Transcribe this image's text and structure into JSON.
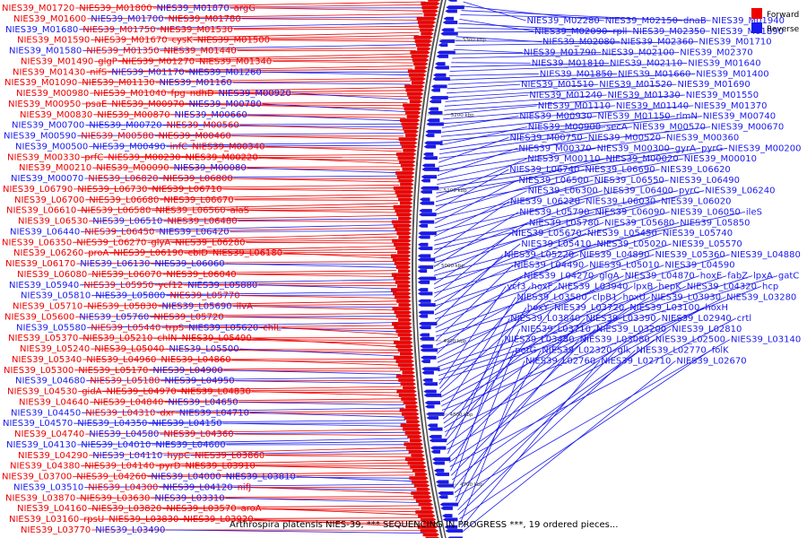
{
  "caption": "Arthrospira platensis NIES-39, *** SEQUENCING IN PROGRESS ***, 19 ordered pieces...",
  "legend": [
    {
      "label": "Forward",
      "color": "#ee0000"
    },
    {
      "label": "Reverse",
      "color": "#1a1aee"
    }
  ],
  "ticks": [
    "5300 kbp",
    "5200 kbp",
    "5100 kbp",
    "5000 kbp",
    "4900 kbp",
    "4800 kbp",
    "4700 kbp"
  ],
  "left_labels": [
    [
      "NIES39_M01720",
      "r"
    ],
    [
      "NIES39_M01800",
      "r"
    ],
    [
      "NIES39_M01870",
      "b"
    ],
    [
      "argG",
      "r"
    ],
    [
      "NIES39_M01600",
      "r"
    ],
    [
      "NIES39_M01700",
      "b"
    ],
    [
      "NIES39_M01780",
      "r"
    ],
    [
      "NIES39_M01680",
      "b"
    ],
    [
      "NIES39_M01750",
      "r"
    ],
    [
      "NIES39_M01530",
      "r"
    ],
    [
      "NIES39_M01590",
      "r"
    ],
    [
      "NIES39_M01670",
      "r"
    ],
    [
      "cysK",
      "r"
    ],
    [
      "NIES39_M01500",
      "r"
    ],
    [
      "NIES39_M01580",
      "b"
    ],
    [
      "NIES39_M01350",
      "r"
    ],
    [
      "NIES39_M01440",
      "r"
    ],
    [
      "NIES39_M01490",
      "r"
    ],
    [
      "glgP",
      "r"
    ],
    [
      "NIES39_M01270",
      "r"
    ],
    [
      "NIES39_M01340",
      "r"
    ],
    [
      "NIES39_M01430",
      "r"
    ],
    [
      "nifS",
      "r"
    ],
    [
      "NIES39_M01170",
      "b"
    ],
    [
      "NIES39_M01260",
      "b"
    ],
    [
      "NIES39_M01090",
      "r"
    ],
    [
      "NIES39_M01130",
      "r"
    ],
    [
      "NIES39_M01160",
      "b"
    ],
    [
      "NIES39_M00980",
      "r"
    ],
    [
      "NIES39_M01040",
      "r"
    ],
    [
      "fpg",
      "r"
    ],
    [
      "ndhD",
      "r"
    ],
    [
      "NIES39_M00920",
      "b"
    ],
    [
      "NIES39_M00950",
      "r"
    ],
    [
      "psaE",
      "r"
    ],
    [
      "NIES39_M00970",
      "r"
    ],
    [
      "NIES39_M00780",
      "b"
    ],
    [
      "NIES39_M00830",
      "r"
    ],
    [
      "NIES39_M00870",
      "r"
    ],
    [
      "NIES39_M00660",
      "b"
    ],
    [
      "NIES39_M00700",
      "b"
    ],
    [
      "NIES39_M00720",
      "b"
    ],
    [
      "NIES39_M00560",
      "r"
    ],
    [
      "NIES39_M00590",
      "b"
    ],
    [
      "NIES39_M00580",
      "r"
    ],
    [
      "NIES39_M00460",
      "r"
    ],
    [
      "NIES39_M00500",
      "b"
    ],
    [
      "NIES39_M00490",
      "b"
    ],
    [
      "infC",
      "r"
    ],
    [
      "NIES39_M00340",
      "r"
    ],
    [
      "NIES39_M00330",
      "r"
    ],
    [
      "prfC",
      "r"
    ],
    [
      "NIES39_M00230",
      "r"
    ],
    [
      "NIES39_M00220",
      "r"
    ],
    [
      "NIES39_M00210",
      "r"
    ],
    [
      "NIES39_M00090",
      "r"
    ],
    [
      "NIES39_M00080",
      "b"
    ],
    [
      "NIES39_M00070",
      "b"
    ],
    [
      "NIES39_L06820",
      "r"
    ],
    [
      "NIES39_L06800",
      "r"
    ],
    [
      "NIES39_L06790",
      "r"
    ],
    [
      "NIES39_L06730",
      "r"
    ],
    [
      "NIES39_L06710",
      "r"
    ],
    [
      "NIES39_L06700",
      "r"
    ],
    [
      "NIES39_L06680",
      "r"
    ],
    [
      "NIES39_L06670",
      "r"
    ],
    [
      "NIES39_L06610",
      "r"
    ],
    [
      "NIES39_L06580",
      "r"
    ],
    [
      "NIES39_L06560",
      "r"
    ],
    [
      "alaS",
      "r"
    ],
    [
      "NIES39_L06530",
      "r"
    ],
    [
      "NIES39_L06510",
      "b"
    ],
    [
      "NIES39_L06480",
      "r"
    ],
    [
      "NIES39_L06440",
      "b"
    ],
    [
      "NIES39_L06450",
      "r"
    ],
    [
      "NIES39_L06420",
      "b"
    ],
    [
      "NIES39_L06350",
      "r"
    ],
    [
      "NIES39_L06270",
      "r"
    ],
    [
      "glyA",
      "r"
    ],
    [
      "NIES39_L06280",
      "r"
    ],
    [
      "NIES39_L06260",
      "r"
    ],
    [
      "proA",
      "r"
    ],
    [
      "NIES39_L06190",
      "r"
    ],
    [
      "cbiD",
      "r"
    ],
    [
      "NIES39_L06180",
      "r"
    ],
    [
      "NIES39_L06170",
      "r"
    ],
    [
      "NIES39_L06130",
      "b"
    ],
    [
      "NIES39_L06060",
      "b"
    ],
    [
      "NIES39_L06080",
      "r"
    ],
    [
      "NIES39_L06070",
      "r"
    ],
    [
      "NIES39_L06040",
      "r"
    ],
    [
      "NIES39_L05940",
      "b"
    ],
    [
      "NIES39_L05950",
      "r"
    ],
    [
      "ycf12",
      "r"
    ],
    [
      "NIES39_L05880",
      "b"
    ],
    [
      "NIES39_L05810",
      "b"
    ],
    [
      "NIES39_L05800",
      "b"
    ],
    [
      "NIES39_L05770",
      "r"
    ],
    [
      "NIES39_L05710",
      "r"
    ],
    [
      "NIES39_L05830",
      "r"
    ],
    [
      "NIES39_L05690",
      "b"
    ],
    [
      "ilvA",
      "r"
    ],
    [
      "NIES39_L05600",
      "r"
    ],
    [
      "NIES39_L05760",
      "b"
    ],
    [
      "NIES39_L05720",
      "r"
    ],
    [
      "NIES39_L05580",
      "b"
    ],
    [
      "NIES39_L05440",
      "r"
    ],
    [
      "trpS",
      "r"
    ],
    [
      "NIES39_L05620",
      "b"
    ],
    [
      "chlL",
      "r"
    ],
    [
      "NIES39_L05370",
      "r"
    ],
    [
      "NIES39_L05210",
      "r"
    ],
    [
      "chlN",
      "r"
    ],
    [
      "NIES39_L05490",
      "r"
    ],
    [
      "NIES39_L05240",
      "r"
    ],
    [
      "NIES39_L05040",
      "r"
    ],
    [
      "NIES39_L05500",
      "b"
    ],
    [
      "NIES39_L05340",
      "r"
    ],
    [
      "NIES39_L04960",
      "r"
    ],
    [
      "NIES39_L04860",
      "r"
    ],
    [
      "NIES39_L05300",
      "r"
    ],
    [
      "NIES39_L05170",
      "r"
    ],
    [
      "NIES39_L04900",
      "b"
    ],
    [
      "NIES39_L04680",
      "b"
    ],
    [
      "NIES39_L05180",
      "r"
    ],
    [
      "NIES39_L04950",
      "b"
    ],
    [
      "NIES39_L04530",
      "r"
    ],
    [
      "gidA",
      "r"
    ],
    [
      "NIES39_L04970",
      "r"
    ],
    [
      "NIES39_L04830",
      "r"
    ],
    [
      "NIES39_L04640",
      "r"
    ],
    [
      "NIES39_L04840",
      "r"
    ],
    [
      "NIES39_L04650",
      "b"
    ],
    [
      "NIES39_L04450",
      "b"
    ],
    [
      "NIES39_L04310",
      "r"
    ],
    [
      "dxr",
      "r"
    ],
    [
      "NIES39_L04710",
      "b"
    ],
    [
      "NIES39_L04570",
      "b"
    ],
    [
      "NIES39_L04350",
      "b"
    ],
    [
      "NIES39_L04150",
      "b"
    ],
    [
      "NIES39_L04740",
      "r"
    ],
    [
      "NIES39_L04580",
      "b"
    ],
    [
      "NIES39_L04360",
      "r"
    ],
    [
      "NIES39_L04130",
      "b"
    ],
    [
      "NIES39_L04010",
      "b"
    ],
    [
      "NIES39_L04600",
      "b"
    ],
    [
      "NIES39_L04290",
      "r"
    ],
    [
      "NIES39_L04110",
      "b"
    ],
    [
      "hypC",
      "r"
    ],
    [
      "NIES39_L03860",
      "r"
    ],
    [
      "NIES39_L04380",
      "r"
    ],
    [
      "NIES39_L04140",
      "r"
    ],
    [
      "pyrD",
      "r"
    ],
    [
      "NIES39_L03910",
      "r"
    ],
    [
      "NIES39_L03700",
      "r"
    ],
    [
      "NIES39_L04260",
      "r"
    ],
    [
      "NIES39_L04000",
      "b"
    ],
    [
      "NIES39_L03810",
      "b"
    ],
    [
      "NIES39_L03510",
      "b"
    ],
    [
      "NIES39_L04300",
      "r"
    ],
    [
      "NIES39_L04120",
      "b"
    ],
    [
      "nifJ",
      "r"
    ],
    [
      "NIES39_L03870",
      "r"
    ],
    [
      "NIES39_L03630",
      "r"
    ],
    [
      "NIES39_L03310",
      "b"
    ],
    [
      "NIES39_L04160",
      "r"
    ],
    [
      "NIES39_L03820",
      "r"
    ],
    [
      "NIES39_L03570",
      "r"
    ],
    [
      "aroA",
      "r"
    ],
    [
      "NIES39_L03160",
      "r"
    ],
    [
      "rpsU",
      "r"
    ],
    [
      "NIES39_L03830",
      "r"
    ],
    [
      "NIES39_L03920",
      "r"
    ],
    [
      "NIES39_L03770",
      "r"
    ],
    [
      "NIES39_L03490",
      "b"
    ]
  ],
  "right_labels": [
    [
      "NIES39_M02280",
      "b"
    ],
    [
      "NIES39_M02150",
      "b"
    ],
    [
      "dnaB",
      "b"
    ],
    [
      "NIES39_M01940",
      "b"
    ],
    [
      "NIES39_M02090",
      "b"
    ],
    [
      "rpll",
      "b"
    ],
    [
      "NIES39_M02350",
      "b"
    ],
    [
      "NIES39_M01890",
      "b"
    ],
    [
      "NIES39_M02080",
      "b"
    ],
    [
      "NIES39_M02360",
      "b"
    ],
    [
      "NIES39_M01710",
      "b"
    ],
    [
      "NIES39_M01790",
      "b"
    ],
    [
      "NIES39_M02100",
      "b"
    ],
    [
      "NIES39_M02370",
      "b"
    ],
    [
      "NIES39_M01810",
      "b"
    ],
    [
      "NIES39_M02110",
      "b"
    ],
    [
      "NIES39_M01640",
      "b"
    ],
    [
      "NIES39_M01850",
      "b"
    ],
    [
      "NIES39_M01660",
      "b"
    ],
    [
      "NIES39_M01400",
      "b"
    ],
    [
      "NIES39_M01510",
      "b"
    ],
    [
      "NIES39_M01520",
      "b"
    ],
    [
      "NIES39_M01690",
      "b"
    ],
    [
      "NIES39_M01240",
      "b"
    ],
    [
      "NIES39_M01330",
      "b"
    ],
    [
      "NIES39_M01550",
      "b"
    ],
    [
      "NIES39_M01110",
      "b"
    ],
    [
      "NIES39_M01140",
      "b"
    ],
    [
      "NIES39_M01370",
      "b"
    ],
    [
      "NIES39_M00930",
      "b"
    ],
    [
      "NIES39_M01150",
      "b"
    ],
    [
      "rlmN",
      "b"
    ],
    [
      "NIES39_M00740",
      "b"
    ],
    [
      "NIES39_M00900",
      "b"
    ],
    [
      "secA",
      "b"
    ],
    [
      "NIES39_M00570",
      "b"
    ],
    [
      "NIES39_M00670",
      "b"
    ],
    [
      "NIES39_M00750",
      "b"
    ],
    [
      "NIES39_M00520",
      "b"
    ],
    [
      "NIES39_M00360",
      "b"
    ],
    [
      "NIES39_M00370",
      "b"
    ],
    [
      "NIES39_M00300",
      "b"
    ],
    [
      "gyrA",
      "b"
    ],
    [
      "pyrG",
      "b"
    ],
    [
      "NIES39_M00200",
      "b"
    ],
    [
      "NIES39_M00110",
      "b"
    ],
    [
      "NIES39_M00020",
      "b"
    ],
    [
      "NIES39_M00010",
      "b"
    ],
    [
      "NIES39_L06740",
      "b"
    ],
    [
      "NIES39_L06690",
      "b"
    ],
    [
      "NIES39_L06620",
      "b"
    ],
    [
      "NIES39_L06500",
      "b"
    ],
    [
      "NIES39_L06550",
      "b"
    ],
    [
      "NIES39_L06490",
      "b"
    ],
    [
      "NIES39_L06300",
      "b"
    ],
    [
      "NIES39_L06400",
      "b"
    ],
    [
      "pyrC",
      "b"
    ],
    [
      "NIES39_L06240",
      "b"
    ],
    [
      "NIES39_L06220",
      "b"
    ],
    [
      "NIES39_L06030",
      "b"
    ],
    [
      "NIES39_L06020",
      "b"
    ],
    [
      "NIES39_L05790",
      "b"
    ],
    [
      "NIES39_L06090",
      "b"
    ],
    [
      "NIES39_L06050",
      "b"
    ],
    [
      "ileS",
      "b"
    ],
    [
      "NIES39_L05780",
      "b"
    ],
    [
      "NIES39_L05680",
      "b"
    ],
    [
      "NIES39_L05850",
      "b"
    ],
    [
      "NIES39_L05670",
      "b"
    ],
    [
      "NIES39_L05450",
      "b"
    ],
    [
      "NIES39_L05740",
      "b"
    ],
    [
      "NIES39_L05410",
      "b"
    ],
    [
      "NIES39_L05020",
      "b"
    ],
    [
      "NIES39_L05570",
      "b"
    ],
    [
      "NIES39_L05220",
      "b"
    ],
    [
      "NIES39_L04890",
      "b"
    ],
    [
      "NIES39_L05360",
      "b"
    ],
    [
      "NIES39_L04880",
      "b"
    ],
    [
      "NIES39_L04490",
      "b"
    ],
    [
      "NIES39_L05010",
      "b"
    ],
    [
      "NIES39_L04590",
      "b"
    ],
    [
      "NIES39_L04270",
      "b"
    ],
    [
      "glgA",
      "b"
    ],
    [
      "NIES39_L04870",
      "b"
    ],
    [
      "hoxE",
      "b"
    ],
    [
      "fabZ",
      "b"
    ],
    [
      "lpxA",
      "b"
    ],
    [
      "gatC",
      "b"
    ],
    [
      "ycf3",
      "b"
    ],
    [
      "hoxF",
      "b"
    ],
    [
      "NIES39_L03940",
      "b"
    ],
    [
      "lpxB",
      "b"
    ],
    [
      "hepK",
      "b"
    ],
    [
      "NIES39_L04320",
      "b"
    ],
    [
      "hcp",
      "b"
    ],
    [
      "NIES39_L03580",
      "b"
    ],
    [
      "clpB1",
      "b"
    ],
    [
      "hoxU",
      "b"
    ],
    [
      "NIES39_L03930",
      "b"
    ],
    [
      "NIES39_L03280",
      "b"
    ],
    [
      "hoxY",
      "b"
    ],
    [
      "NIES39_L03720",
      "b"
    ],
    [
      "NIES39_L03100",
      "b"
    ],
    [
      "hoxH",
      "b"
    ],
    [
      "NIES39_L03840",
      "b"
    ],
    [
      "NIES39_L03390",
      "b"
    ],
    [
      "NIES39_L02940",
      "b"
    ],
    [
      "crtl",
      "b"
    ],
    [
      "NIES39_L03710",
      "b"
    ],
    [
      "NIES39_L03200",
      "b"
    ],
    [
      "NIES39_L02810",
      "b"
    ],
    [
      "NIES39_L03480",
      "b"
    ],
    [
      "NIES39_L03080",
      "b"
    ],
    [
      "NIES39_L02500",
      "b"
    ],
    [
      "NIES39_L03140",
      "b"
    ],
    [
      "petG",
      "b"
    ],
    [
      "NIES39_L02320",
      "b"
    ],
    [
      "glk",
      "b"
    ],
    [
      "NIES39_L02770",
      "b"
    ],
    [
      "folK",
      "b"
    ],
    [
      "NIES39_L02760",
      "b"
    ],
    [
      "NIES39_L02710",
      "b"
    ],
    [
      "NIES39_L02670",
      "b"
    ]
  ]
}
